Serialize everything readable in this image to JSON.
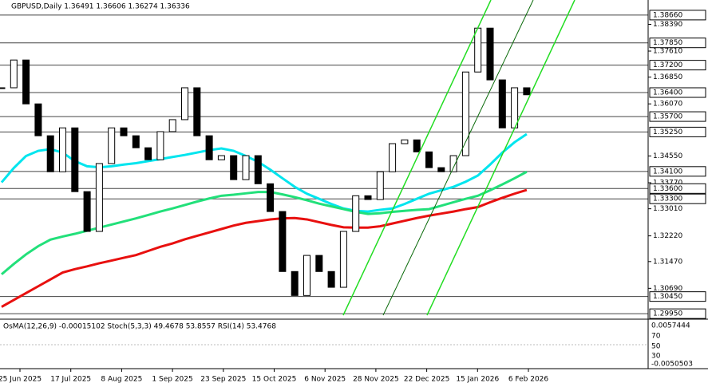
{
  "chart_data": {
    "type": "candlestick",
    "title": "GBPUSD,Daily  1.36491 1.36606 1.36274 1.36336",
    "indicator_title": "OsMA(12,26,9) -0.00015102  Stoch(5,3,3) 49.4678 53.8557  RSI(14) 53.4768",
    "indicator_ticks": [
      "0.0057444",
      "70",
      "50",
      "30",
      "-0.0050503"
    ],
    "date_labels": [
      "25 Jun 2025",
      "17 Jul 2025",
      "8 Aug 2025",
      "1 Sep 2025",
      "23 Sep 2025",
      "15 Oct 2025",
      "6 Nov 2025",
      "28 Nov 2025",
      "22 Dec 2025",
      "15 Jan 2026",
      "6 Feb 2026"
    ],
    "ylim": [
      1.2979,
      1.391
    ],
    "yticks": [
      {
        "value": 1.3839,
        "label": "1.38390"
      },
      {
        "value": 1.3761,
        "label": "1.37610"
      },
      {
        "value": 1.3685,
        "label": "1.36850"
      },
      {
        "value": 1.3607,
        "label": "1.36070"
      },
      {
        "value": 1.3455,
        "label": "1.34550"
      },
      {
        "value": 1.3377,
        "label": "1.33770"
      },
      {
        "value": 1.3301,
        "label": "1.33010"
      },
      {
        "value": 1.3222,
        "label": "1.32220"
      },
      {
        "value": 1.3147,
        "label": "1.31470"
      },
      {
        "value": 1.3069,
        "label": "1.30690"
      }
    ],
    "levels": [
      {
        "value": 1.3866,
        "label": "1.38660"
      },
      {
        "value": 1.3785,
        "label": "1.37850"
      },
      {
        "value": 1.372,
        "label": "1.37200"
      },
      {
        "value": 1.364,
        "label": "1.36400"
      },
      {
        "value": 1.357,
        "label": "1.35700"
      },
      {
        "value": 1.3525,
        "label": "1.35250"
      },
      {
        "value": 1.341,
        "label": "1.34100"
      },
      {
        "value": 1.336,
        "label": "1.33600"
      },
      {
        "value": 1.333,
        "label": "1.33300"
      },
      {
        "value": 1.3045,
        "label": "1.30450"
      },
      {
        "value": 1.2995,
        "label": "1.29950"
      }
    ],
    "close": [
      1.3654,
      1.3735,
      1.3607,
      1.3514,
      1.3409,
      1.3537,
      1.3351,
      1.3235,
      1.3433,
      1.3537,
      1.3514,
      1.3479,
      1.3444,
      1.3526,
      1.3561,
      1.3654,
      1.3514,
      1.3444,
      1.3456,
      1.3386,
      1.3456,
      1.3374,
      1.3293,
      1.3118,
      1.3048,
      1.3165,
      1.3118,
      1.3072,
      1.3235,
      1.3339,
      1.3328,
      1.3409,
      1.3491,
      1.3502,
      1.3467,
      1.3421,
      1.3409,
      1.3456,
      1.37,
      1.3828,
      1.3677,
      1.3537,
      1.3654,
      1.36336
    ],
    "series": [
      {
        "color": "#00e5ee",
        "values": [
          1.3378,
          1.342,
          1.3455,
          1.347,
          1.3475,
          1.3465,
          1.344,
          1.3425,
          1.3422,
          1.3425,
          1.343,
          1.3434,
          1.344,
          1.3446,
          1.3452,
          1.3458,
          1.3465,
          1.3472,
          1.3477,
          1.347,
          1.3455,
          1.3438,
          1.3415,
          1.339,
          1.3365,
          1.3345,
          1.333,
          1.3315,
          1.3302,
          1.3295,
          1.3293,
          1.3298,
          1.3302,
          1.3315,
          1.333,
          1.3345,
          1.3355,
          1.3365,
          1.338,
          1.3398,
          1.343,
          1.3465,
          1.3495,
          1.3519
        ]
      },
      {
        "color": "#22e07a",
        "values": [
          1.311,
          1.314,
          1.3168,
          1.3192,
          1.3211,
          1.322,
          1.3228,
          1.3237,
          1.3246,
          1.3255,
          1.3264,
          1.3273,
          1.3283,
          1.3293,
          1.3302,
          1.3312,
          1.3322,
          1.3331,
          1.3339,
          1.3342,
          1.3346,
          1.335,
          1.335,
          1.3343,
          1.3335,
          1.3326,
          1.3316,
          1.3308,
          1.33,
          1.3292,
          1.3286,
          1.3288,
          1.3292,
          1.3295,
          1.3298,
          1.33,
          1.331,
          1.332,
          1.333,
          1.3339,
          1.3355,
          1.3372,
          1.339,
          1.3409
        ]
      },
      {
        "color": "#e8100f",
        "values": [
          1.3015,
          1.3035,
          1.3055,
          1.3075,
          1.3095,
          1.3115,
          1.3125,
          1.3133,
          1.3142,
          1.315,
          1.3158,
          1.3166,
          1.3178,
          1.319,
          1.32,
          1.3212,
          1.3222,
          1.3232,
          1.3242,
          1.3252,
          1.326,
          1.3265,
          1.327,
          1.3273,
          1.3274,
          1.327,
          1.3262,
          1.3254,
          1.3247,
          1.3246,
          1.3246,
          1.325,
          1.3258,
          1.3266,
          1.3274,
          1.3281,
          1.3287,
          1.3293,
          1.33,
          1.3306,
          1.332,
          1.3333,
          1.3345,
          1.3356
        ]
      }
    ]
  }
}
